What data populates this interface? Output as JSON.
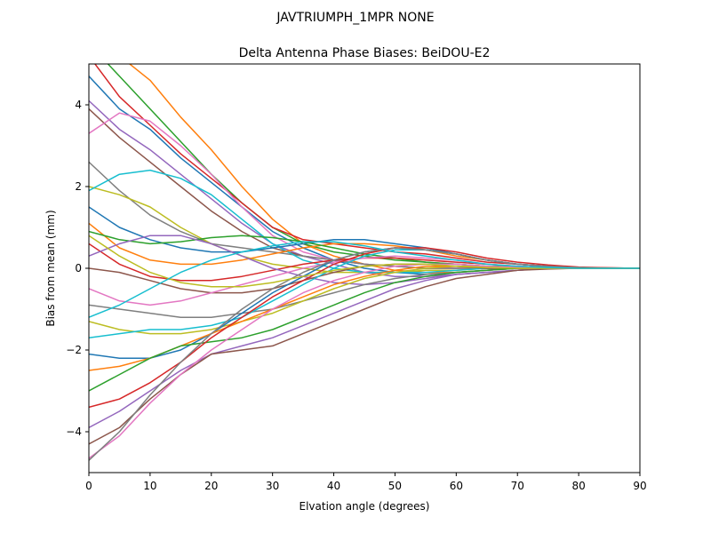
{
  "figure": {
    "suptitle": "JAVTRIUMPH_1MPR NONE"
  },
  "chart_data": {
    "type": "line",
    "title": "Delta Antenna Phase Biases: BeiDOU-E2",
    "xlabel": "Elvation angle (degrees)",
    "ylabel": "Bias from mean (mm)",
    "xlim": [
      0,
      90
    ],
    "ylim": [
      -5,
      5
    ],
    "x_ticks": [
      0,
      10,
      20,
      30,
      40,
      50,
      60,
      70,
      80,
      90
    ],
    "y_ticks": [
      -4,
      -2,
      0,
      2,
      4
    ],
    "x_tick_labels": [
      "0",
      "10",
      "20",
      "30",
      "40",
      "50",
      "60",
      "70",
      "80",
      "90"
    ],
    "y_tick_labels": [
      "−4",
      "−2",
      "0",
      "2",
      "4"
    ],
    "grid": false,
    "legend": "none",
    "colors": [
      "#1f77b4",
      "#ff7f0e",
      "#2ca02c",
      "#d62728",
      "#9467bd",
      "#8c564b",
      "#e377c2",
      "#7f7f7f",
      "#bcbd22",
      "#17becf"
    ],
    "x": [
      0,
      5,
      10,
      15,
      20,
      25,
      30,
      35,
      40,
      45,
      50,
      55,
      60,
      65,
      70,
      75,
      80,
      85,
      90
    ],
    "series": [
      {
        "values": [
          4.7,
          3.9,
          3.4,
          2.7,
          2.1,
          1.5,
          0.9,
          0.5,
          0.2,
          0.0,
          -0.1,
          -0.15,
          -0.1,
          -0.05,
          0.0,
          0.0,
          0.0,
          0.0,
          0.0
        ]
      },
      {
        "values": [
          5.8,
          5.2,
          4.6,
          3.7,
          2.9,
          2.0,
          1.2,
          0.6,
          0.3,
          0.1,
          -0.05,
          -0.1,
          -0.1,
          -0.05,
          0.0,
          0.0,
          0.0,
          0.0,
          0.0
        ]
      },
      {
        "values": [
          5.5,
          4.7,
          3.9,
          3.1,
          2.3,
          1.6,
          1.0,
          0.6,
          0.4,
          0.3,
          0.2,
          0.15,
          0.1,
          0.05,
          0.05,
          0.02,
          0.01,
          0.0,
          0.0
        ]
      },
      {
        "values": [
          5.2,
          4.2,
          3.5,
          2.8,
          2.2,
          1.6,
          1.0,
          0.7,
          0.6,
          0.5,
          0.4,
          0.35,
          0.25,
          0.15,
          0.1,
          0.05,
          0.02,
          0.01,
          0.0
        ]
      },
      {
        "values": [
          4.1,
          3.4,
          2.9,
          2.3,
          1.7,
          1.1,
          0.6,
          0.3,
          0.1,
          -0.1,
          -0.2,
          -0.2,
          -0.15,
          -0.1,
          -0.05,
          0.0,
          0.0,
          0.0,
          0.0
        ]
      },
      {
        "values": [
          3.9,
          3.2,
          2.6,
          2.0,
          1.4,
          0.9,
          0.5,
          0.3,
          0.2,
          0.1,
          0.05,
          0.0,
          0.0,
          0.0,
          0.0,
          0.0,
          0.0,
          0.0,
          0.0
        ]
      },
      {
        "values": [
          3.3,
          3.8,
          3.6,
          3.0,
          2.3,
          1.5,
          0.8,
          0.4,
          0.2,
          0.1,
          0.05,
          0.0,
          0.0,
          0.0,
          0.0,
          0.0,
          0.0,
          0.0,
          0.0
        ]
      },
      {
        "values": [
          2.6,
          1.9,
          1.3,
          0.9,
          0.6,
          0.5,
          0.4,
          0.3,
          0.2,
          0.1,
          0.05,
          0.0,
          0.0,
          0.0,
          0.0,
          0.0,
          0.0,
          0.0,
          0.0
        ]
      },
      {
        "values": [
          2.0,
          1.8,
          1.5,
          1.0,
          0.6,
          0.3,
          0.1,
          0.0,
          -0.1,
          -0.1,
          -0.1,
          -0.05,
          -0.05,
          0.0,
          0.0,
          0.0,
          0.0,
          0.0,
          0.0
        ]
      },
      {
        "values": [
          1.9,
          2.3,
          2.4,
          2.2,
          1.8,
          1.2,
          0.6,
          0.2,
          0.0,
          -0.1,
          -0.1,
          -0.1,
          -0.05,
          0.0,
          0.0,
          0.0,
          0.0,
          0.0,
          0.0
        ]
      },
      {
        "values": [
          1.5,
          1.0,
          0.7,
          0.5,
          0.4,
          0.4,
          0.5,
          0.6,
          0.7,
          0.7,
          0.6,
          0.5,
          0.35,
          0.2,
          0.1,
          0.05,
          0.02,
          0.0,
          0.0
        ]
      },
      {
        "values": [
          1.1,
          0.5,
          0.2,
          0.1,
          0.1,
          0.2,
          0.35,
          0.5,
          0.6,
          0.6,
          0.55,
          0.45,
          0.3,
          0.2,
          0.1,
          0.05,
          0.02,
          0.0,
          0.0
        ]
      },
      {
        "values": [
          0.9,
          0.7,
          0.6,
          0.65,
          0.75,
          0.8,
          0.75,
          0.65,
          0.5,
          0.35,
          0.25,
          0.15,
          0.1,
          0.05,
          0.02,
          0.0,
          0.0,
          0.0,
          0.0
        ]
      },
      {
        "values": [
          0.6,
          0.1,
          -0.2,
          -0.3,
          -0.3,
          -0.2,
          -0.05,
          0.1,
          0.2,
          0.25,
          0.25,
          0.2,
          0.15,
          0.1,
          0.05,
          0.02,
          0.0,
          0.0,
          0.0
        ]
      },
      {
        "values": [
          0.3,
          0.6,
          0.8,
          0.8,
          0.6,
          0.3,
          0.0,
          -0.2,
          -0.35,
          -0.4,
          -0.35,
          -0.25,
          -0.15,
          -0.1,
          -0.05,
          0.0,
          0.0,
          0.0,
          0.0
        ]
      },
      {
        "values": [
          0.0,
          -0.1,
          -0.3,
          -0.5,
          -0.6,
          -0.6,
          -0.5,
          -0.3,
          -0.1,
          0.05,
          0.1,
          0.1,
          0.05,
          0.0,
          0.0,
          0.0,
          0.0,
          0.0,
          0.0
        ]
      },
      {
        "values": [
          -0.5,
          -0.8,
          -0.9,
          -0.8,
          -0.6,
          -0.4,
          -0.2,
          0.0,
          0.15,
          0.25,
          0.3,
          0.25,
          0.2,
          0.1,
          0.05,
          0.02,
          0.0,
          0.0,
          0.0
        ]
      },
      {
        "values": [
          -0.9,
          -1.0,
          -1.1,
          -1.2,
          -1.2,
          -1.1,
          -1.0,
          -0.8,
          -0.6,
          -0.4,
          -0.25,
          -0.15,
          -0.1,
          -0.05,
          0.0,
          0.0,
          0.0,
          0.0,
          0.0
        ]
      },
      {
        "values": [
          -1.3,
          -1.5,
          -1.6,
          -1.6,
          -1.5,
          -1.3,
          -1.1,
          -0.8,
          -0.5,
          -0.25,
          -0.1,
          0.0,
          0.05,
          0.05,
          0.02,
          0.0,
          0.0,
          0.0,
          0.0
        ]
      },
      {
        "values": [
          -1.7,
          -1.6,
          -1.5,
          -1.5,
          -1.4,
          -1.2,
          -0.8,
          -0.4,
          0.0,
          0.3,
          0.45,
          0.45,
          0.35,
          0.2,
          0.1,
          0.05,
          0.02,
          0.0,
          0.0
        ]
      },
      {
        "values": [
          -2.1,
          -2.2,
          -2.2,
          -2.0,
          -1.6,
          -1.1,
          -0.6,
          -0.2,
          0.2,
          0.4,
          0.5,
          0.45,
          0.35,
          0.2,
          0.1,
          0.05,
          0.02,
          0.0,
          0.0
        ]
      },
      {
        "values": [
          -2.5,
          -2.4,
          -2.2,
          -1.9,
          -1.6,
          -1.3,
          -1.0,
          -0.7,
          -0.4,
          -0.2,
          -0.05,
          0.05,
          0.05,
          0.02,
          0.0,
          0.0,
          0.0,
          0.0,
          0.0
        ]
      },
      {
        "values": [
          -3.0,
          -2.6,
          -2.2,
          -1.9,
          -1.8,
          -1.7,
          -1.5,
          -1.2,
          -0.9,
          -0.6,
          -0.35,
          -0.2,
          -0.1,
          -0.05,
          0.0,
          0.0,
          0.0,
          0.0,
          0.0
        ]
      },
      {
        "values": [
          -3.4,
          -3.2,
          -2.8,
          -2.3,
          -1.7,
          -1.2,
          -0.7,
          -0.3,
          0.1,
          0.35,
          0.5,
          0.5,
          0.4,
          0.25,
          0.15,
          0.08,
          0.03,
          0.01,
          0.0
        ]
      },
      {
        "values": [
          -3.9,
          -3.5,
          -3.0,
          -2.5,
          -2.1,
          -1.9,
          -1.7,
          -1.4,
          -1.1,
          -0.8,
          -0.5,
          -0.3,
          -0.15,
          -0.1,
          -0.05,
          0.0,
          0.0,
          0.0,
          0.0
        ]
      },
      {
        "values": [
          -4.3,
          -3.9,
          -3.2,
          -2.6,
          -2.1,
          -2.0,
          -1.9,
          -1.6,
          -1.3,
          -1.0,
          -0.7,
          -0.45,
          -0.25,
          -0.15,
          -0.05,
          -0.02,
          0.0,
          0.0,
          0.0
        ]
      },
      {
        "values": [
          -4.65,
          -4.1,
          -3.3,
          -2.6,
          -2.0,
          -1.5,
          -1.0,
          -0.6,
          -0.3,
          -0.1,
          0.05,
          0.1,
          0.1,
          0.05,
          0.02,
          0.0,
          0.0,
          0.0,
          0.0
        ]
      },
      {
        "values": [
          -4.7,
          -4.0,
          -3.1,
          -2.3,
          -1.6,
          -1.0,
          -0.5,
          -0.1,
          0.2,
          0.4,
          0.5,
          0.45,
          0.35,
          0.2,
          0.1,
          0.05,
          0.02,
          0.0,
          0.0
        ]
      },
      {
        "values": [
          0.8,
          0.3,
          -0.1,
          -0.35,
          -0.45,
          -0.45,
          -0.35,
          -0.2,
          -0.05,
          0.05,
          0.1,
          0.1,
          0.05,
          0.02,
          0.0,
          0.0,
          0.0,
          0.0,
          0.0
        ]
      },
      {
        "values": [
          -1.2,
          -0.9,
          -0.5,
          -0.1,
          0.2,
          0.4,
          0.55,
          0.65,
          0.65,
          0.55,
          0.4,
          0.3,
          0.2,
          0.1,
          0.05,
          0.02,
          0.0,
          0.0,
          0.0
        ]
      }
    ]
  }
}
